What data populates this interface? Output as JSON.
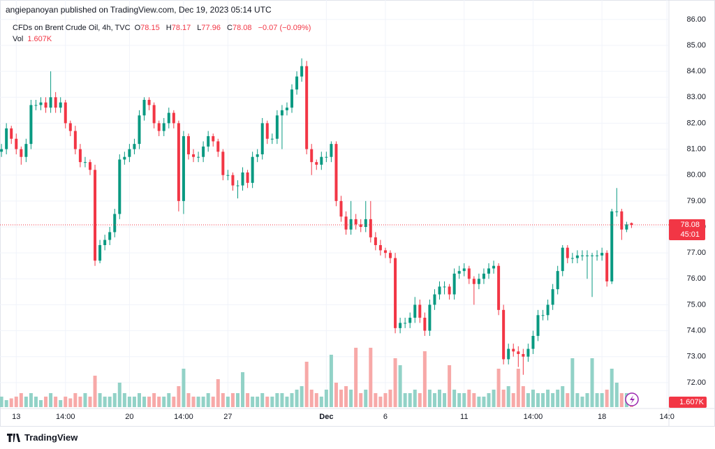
{
  "header": "angiepanoyan published on TradingView.com, Dec 19, 2023 05:14 UTC",
  "footer": "TradingView",
  "chart_data": {
    "type": "candlestick",
    "title": "CFDs on Brent Crude Oil, 4h, TVC",
    "legend": {
      "o": "O",
      "h": "H",
      "l": "L",
      "c": "C",
      "change": "−0.07 (−0.09%)",
      "vol_title": "Vol",
      "vol": "1.607K",
      "countdown": "45:01"
    },
    "up_color": "#089981",
    "down_color": "#f23645",
    "volume_up_color": "#92d2c7",
    "volume_down_color": "#f7a9a8",
    "ylim": [
      71.0,
      86.75
    ],
    "yticks": [
      {
        "value": 72,
        "label": "72.00"
      },
      {
        "value": 73,
        "label": "73.00"
      },
      {
        "value": 74,
        "label": "74.00"
      },
      {
        "value": 75,
        "label": "75.00"
      },
      {
        "value": 76,
        "label": "76.00"
      },
      {
        "value": 77,
        "label": "77.00"
      },
      {
        "value": 78,
        "label": "78.00"
      },
      {
        "value": 79,
        "label": "79.00"
      },
      {
        "value": 80,
        "label": "80.00"
      },
      {
        "value": 81,
        "label": "81.00"
      },
      {
        "value": 82,
        "label": "82.00"
      },
      {
        "value": 83,
        "label": "83.00"
      },
      {
        "value": 84,
        "label": "84.00"
      },
      {
        "value": 85,
        "label": "85.00"
      },
      {
        "value": 86,
        "label": "86.00"
      }
    ],
    "xlim": [
      -0.3,
      135.6
    ],
    "xticks": [
      {
        "value": 3,
        "label": "13"
      },
      {
        "value": 13,
        "label": "14:00"
      },
      {
        "value": 26,
        "label": "20"
      },
      {
        "value": 37,
        "label": "14:00"
      },
      {
        "value": 46,
        "label": "27"
      },
      {
        "value": 66,
        "label": "Dec"
      },
      {
        "value": 78,
        "label": "6"
      },
      {
        "value": 94,
        "label": "11"
      },
      {
        "value": 108,
        "label": "14:00"
      },
      {
        "value": 122,
        "label": "18"
      },
      {
        "value": 135.2,
        "label": "14:0"
      }
    ],
    "vlim": [
      0,
      20
    ],
    "grid": true,
    "candles": [
      [
        80.9,
        81.2,
        80.7,
        81.0,
        3
      ],
      [
        81.0,
        82.0,
        80.8,
        81.8,
        2
      ],
      [
        81.8,
        81.9,
        81.2,
        81.4,
        2.5
      ],
      [
        81.4,
        81.6,
        80.8,
        81.0,
        3
      ],
      [
        81.0,
        81.1,
        80.4,
        80.7,
        4
      ],
      [
        80.7,
        81.4,
        80.5,
        81.2,
        3
      ],
      [
        81.2,
        82.9,
        81.0,
        82.7,
        4
      ],
      [
        82.7,
        82.9,
        82.5,
        82.7,
        3
      ],
      [
        82.7,
        83.0,
        82.5,
        82.8,
        2
      ],
      [
        82.8,
        83.0,
        82.4,
        82.6,
        3
      ],
      [
        82.6,
        84.0,
        82.4,
        83.0,
        4
      ],
      [
        83.0,
        83.2,
        82.4,
        82.6,
        3
      ],
      [
        82.6,
        83.0,
        82.4,
        82.8,
        2
      ],
      [
        82.8,
        82.9,
        81.8,
        82.0,
        3
      ],
      [
        82.0,
        82.1,
        81.5,
        81.7,
        2.5
      ],
      [
        81.7,
        81.9,
        80.8,
        81.0,
        4
      ],
      [
        81.0,
        81.2,
        80.3,
        80.5,
        3
      ],
      [
        80.5,
        80.7,
        80.3,
        80.5,
        4
      ],
      [
        80.5,
        80.6,
        80.0,
        80.2,
        3
      ],
      [
        80.2,
        80.4,
        76.5,
        76.7,
        9
      ],
      [
        76.7,
        77.5,
        76.6,
        77.3,
        4
      ],
      [
        77.3,
        77.7,
        77.1,
        77.5,
        3
      ],
      [
        77.5,
        78.0,
        77.3,
        77.8,
        3
      ],
      [
        77.8,
        78.7,
        77.6,
        78.5,
        4
      ],
      [
        78.5,
        80.8,
        78.3,
        80.6,
        7
      ],
      [
        80.6,
        80.9,
        80.4,
        80.7,
        4
      ],
      [
        80.7,
        81.2,
        80.5,
        81.0,
        3
      ],
      [
        81.0,
        81.4,
        80.8,
        81.2,
        3
      ],
      [
        81.2,
        82.5,
        81.0,
        82.3,
        4
      ],
      [
        82.3,
        83.0,
        82.1,
        82.9,
        3
      ],
      [
        82.9,
        83.0,
        82.5,
        82.7,
        3
      ],
      [
        82.7,
        82.8,
        81.8,
        82.0,
        4
      ],
      [
        82.0,
        82.1,
        81.5,
        81.7,
        3
      ],
      [
        81.7,
        82.2,
        81.5,
        82.0,
        3
      ],
      [
        82.0,
        82.6,
        81.8,
        82.4,
        4
      ],
      [
        82.4,
        82.5,
        81.8,
        82.0,
        3
      ],
      [
        82.0,
        82.1,
        78.6,
        79.0,
        6
      ],
      [
        79.0,
        81.7,
        78.5,
        81.5,
        11
      ],
      [
        81.5,
        81.6,
        80.6,
        80.8,
        4
      ],
      [
        80.8,
        81.0,
        80.5,
        80.7,
        3
      ],
      [
        80.7,
        80.9,
        80.5,
        80.7,
        3
      ],
      [
        80.7,
        81.3,
        80.5,
        81.1,
        3
      ],
      [
        81.1,
        81.7,
        80.9,
        81.5,
        4
      ],
      [
        81.5,
        81.6,
        81.1,
        81.3,
        3
      ],
      [
        81.3,
        81.4,
        80.7,
        80.9,
        8
      ],
      [
        80.9,
        81.0,
        79.8,
        80.0,
        4
      ],
      [
        80.0,
        80.2,
        79.8,
        80.0,
        3
      ],
      [
        80.0,
        80.1,
        79.4,
        79.6,
        4
      ],
      [
        79.6,
        79.8,
        79.1,
        79.6,
        4
      ],
      [
        79.6,
        80.3,
        79.4,
        80.1,
        10
      ],
      [
        80.1,
        80.2,
        79.5,
        79.7,
        4
      ],
      [
        79.7,
        80.9,
        79.5,
        80.7,
        3
      ],
      [
        80.7,
        81.0,
        80.5,
        80.8,
        3
      ],
      [
        80.8,
        82.2,
        80.6,
        82.0,
        4
      ],
      [
        82.0,
        82.1,
        81.2,
        81.4,
        3
      ],
      [
        81.4,
        81.6,
        81.2,
        81.4,
        3
      ],
      [
        81.4,
        82.5,
        81.2,
        82.3,
        4
      ],
      [
        82.3,
        82.7,
        81.0,
        82.5,
        4
      ],
      [
        82.5,
        82.8,
        82.3,
        82.6,
        3
      ],
      [
        82.6,
        83.5,
        82.4,
        83.3,
        4
      ],
      [
        83.3,
        84.0,
        83.1,
        83.8,
        5
      ],
      [
        83.8,
        84.5,
        83.6,
        84.2,
        6
      ],
      [
        84.2,
        84.4,
        80.8,
        81.0,
        13
      ],
      [
        81.0,
        81.2,
        80.0,
        80.5,
        5
      ],
      [
        80.5,
        80.6,
        80.2,
        80.4,
        4
      ],
      [
        80.4,
        80.9,
        80.2,
        80.7,
        3
      ],
      [
        80.7,
        80.9,
        80.5,
        80.7,
        5
      ],
      [
        80.7,
        81.3,
        80.5,
        81.2,
        15
      ],
      [
        81.2,
        81.3,
        78.8,
        79.0,
        7
      ],
      [
        79.0,
        79.2,
        78.2,
        78.4,
        5
      ],
      [
        78.4,
        78.6,
        77.7,
        77.9,
        6
      ],
      [
        77.9,
        79.0,
        77.7,
        78.3,
        5
      ],
      [
        78.3,
        78.5,
        77.9,
        78.1,
        17
      ],
      [
        78.1,
        78.3,
        77.8,
        78.0,
        4
      ],
      [
        78.0,
        79.0,
        77.8,
        78.3,
        5
      ],
      [
        78.3,
        79.0,
        77.4,
        77.6,
        17
      ],
      [
        77.6,
        77.8,
        77.1,
        77.3,
        4
      ],
      [
        77.3,
        77.5,
        76.9,
        77.1,
        3
      ],
      [
        77.1,
        77.2,
        76.8,
        77.0,
        4
      ],
      [
        77.0,
        77.1,
        76.6,
        76.8,
        5
      ],
      [
        76.8,
        77.0,
        73.9,
        74.1,
        14
      ],
      [
        74.1,
        74.5,
        73.9,
        74.3,
        12
      ],
      [
        74.3,
        74.5,
        74.1,
        74.3,
        4
      ],
      [
        74.3,
        74.7,
        74.1,
        74.5,
        4
      ],
      [
        74.5,
        75.3,
        74.3,
        75.0,
        5
      ],
      [
        75.0,
        75.2,
        74.3,
        74.5,
        4
      ],
      [
        74.5,
        74.7,
        73.8,
        74.0,
        16
      ],
      [
        74.0,
        75.2,
        73.8,
        75.0,
        5
      ],
      [
        75.0,
        75.6,
        74.8,
        75.4,
        4
      ],
      [
        75.4,
        75.9,
        75.2,
        75.7,
        5
      ],
      [
        75.7,
        75.9,
        75.4,
        75.7,
        4
      ],
      [
        75.7,
        75.8,
        75.2,
        75.4,
        12
      ],
      [
        75.4,
        76.4,
        75.2,
        76.2,
        5
      ],
      [
        76.2,
        76.5,
        76.0,
        76.3,
        4
      ],
      [
        76.3,
        76.6,
        76.1,
        76.4,
        4
      ],
      [
        76.4,
        76.5,
        75.8,
        76.0,
        5
      ],
      [
        76.0,
        76.1,
        75.0,
        75.8,
        4
      ],
      [
        75.8,
        76.2,
        75.6,
        76.0,
        3
      ],
      [
        76.0,
        76.4,
        75.8,
        76.2,
        3
      ],
      [
        76.2,
        76.6,
        76.0,
        76.4,
        4
      ],
      [
        76.4,
        76.7,
        76.2,
        76.5,
        5
      ],
      [
        76.5,
        76.6,
        74.6,
        74.8,
        11
      ],
      [
        74.8,
        75.0,
        72.7,
        72.9,
        5
      ],
      [
        72.9,
        73.5,
        72.7,
        73.3,
        6
      ],
      [
        73.3,
        73.5,
        73.0,
        73.2,
        4
      ],
      [
        73.2,
        73.4,
        72.6,
        73.1,
        11
      ],
      [
        73.1,
        73.3,
        72.3,
        73.0,
        6
      ],
      [
        73.0,
        73.5,
        72.8,
        73.3,
        4
      ],
      [
        73.3,
        74.0,
        73.1,
        73.8,
        5
      ],
      [
        73.8,
        74.8,
        73.6,
        74.6,
        4
      ],
      [
        74.6,
        74.8,
        74.4,
        74.6,
        4
      ],
      [
        74.6,
        75.2,
        74.4,
        75.0,
        5
      ],
      [
        75.0,
        75.8,
        74.8,
        75.6,
        4
      ],
      [
        75.6,
        76.5,
        75.4,
        76.3,
        5
      ],
      [
        76.3,
        77.3,
        76.1,
        77.2,
        6
      ],
      [
        77.2,
        77.3,
        76.6,
        76.8,
        4
      ],
      [
        76.8,
        77.0,
        76.6,
        76.8,
        14
      ],
      [
        76.8,
        77.1,
        76.6,
        76.9,
        4
      ],
      [
        76.9,
        77.1,
        76.7,
        76.9,
        3
      ],
      [
        76.9,
        77.1,
        76.0,
        76.9,
        4
      ],
      [
        76.9,
        77.0,
        75.3,
        76.9,
        14
      ],
      [
        76.9,
        77.1,
        76.7,
        76.9,
        4
      ],
      [
        76.9,
        77.2,
        76.7,
        77.0,
        4
      ],
      [
        77.0,
        77.1,
        75.7,
        75.9,
        5
      ],
      [
        75.9,
        78.7,
        75.8,
        78.6,
        11
      ],
      [
        78.6,
        79.5,
        78.4,
        78.6,
        7
      ],
      [
        78.6,
        78.7,
        77.5,
        77.9,
        4
      ],
      [
        77.9,
        78.2,
        77.8,
        78.1,
        4
      ],
      [
        78.15,
        78.17,
        77.96,
        78.08,
        1.607
      ]
    ]
  }
}
